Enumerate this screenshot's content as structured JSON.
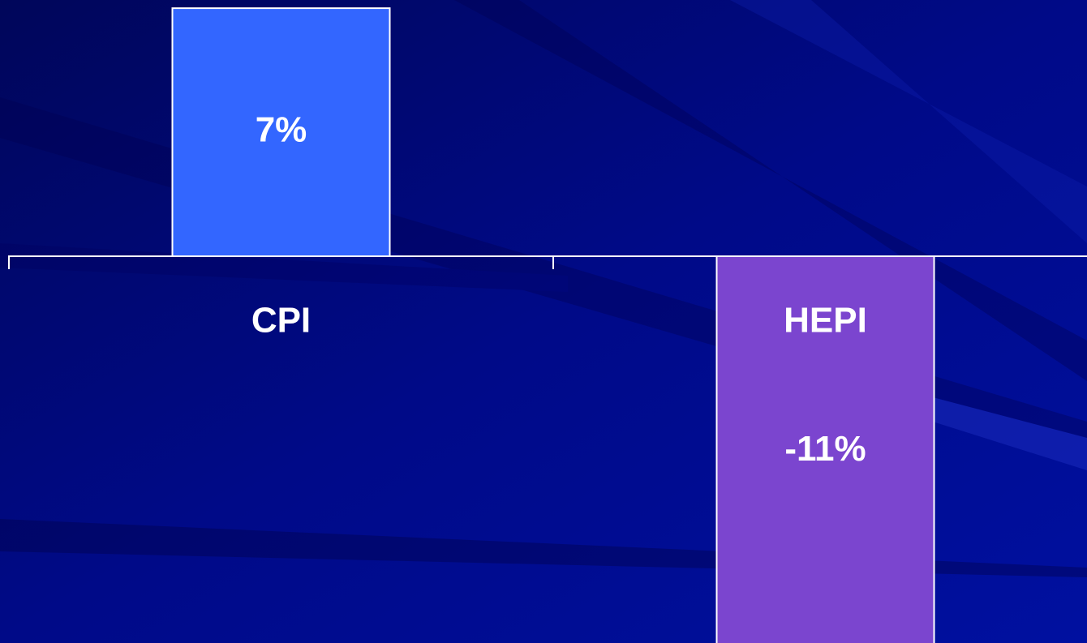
{
  "chart_data": {
    "type": "bar",
    "categories": [
      "CPI",
      "HEPI"
    ],
    "values": [
      7,
      -11
    ],
    "value_labels": [
      "7%",
      "-11%"
    ],
    "colors": [
      "#3366ff",
      "#7b45cf"
    ]
  }
}
